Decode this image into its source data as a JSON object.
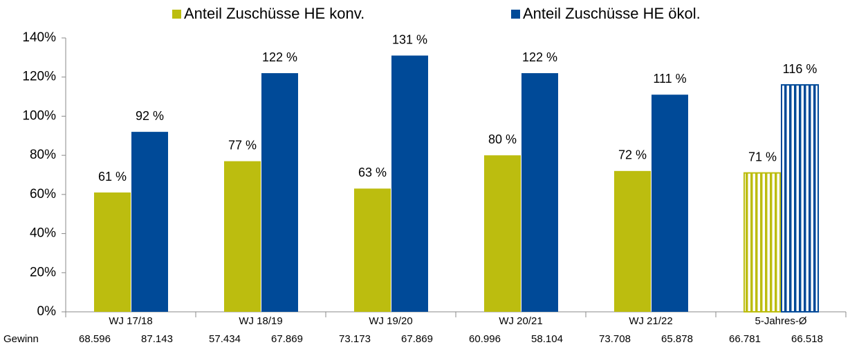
{
  "chart_data": {
    "type": "bar",
    "categories": [
      "WJ 17/18",
      "WJ 18/19",
      "WJ 19/20",
      "WJ 20/21",
      "WJ 21/22",
      "5-Jahres-Ø"
    ],
    "series": [
      {
        "name": "Anteil Zuschüsse HE konv.",
        "color": "#bcbd0f",
        "values": [
          61,
          77,
          63,
          80,
          72,
          71
        ],
        "value_labels": [
          "61 %",
          "77 %",
          "63 %",
          "80 %",
          "72 %",
          "71 %"
        ],
        "gewinn": [
          "68.596",
          "57.434",
          "73.173",
          "60.996",
          "73.708",
          "66.781"
        ]
      },
      {
        "name": "Anteil Zuschüsse HE ökol.",
        "color": "#004a98",
        "values": [
          92,
          122,
          131,
          122,
          111,
          116
        ],
        "value_labels": [
          "92 %",
          "122 %",
          "131 %",
          "122 %",
          "111 %",
          "116 %"
        ],
        "gewinn": [
          "87.143",
          "67.869",
          "67.869",
          "58.104",
          "65.878",
          "66.518"
        ]
      }
    ],
    "hatched": [
      false,
      false,
      false,
      false,
      false,
      true
    ],
    "row_label": "Gewinn",
    "ylim": [
      0,
      140
    ],
    "yticks": [
      {
        "value": 0,
        "label": "0%"
      },
      {
        "value": 20,
        "label": "20%"
      },
      {
        "value": 40,
        "label": "40%"
      },
      {
        "value": 60,
        "label": "60%"
      },
      {
        "value": 80,
        "label": "80%"
      },
      {
        "value": 100,
        "label": "100%"
      },
      {
        "value": 120,
        "label": "120%"
      },
      {
        "value": 140,
        "label": "140%"
      }
    ],
    "legend": "top",
    "grid": false
  }
}
